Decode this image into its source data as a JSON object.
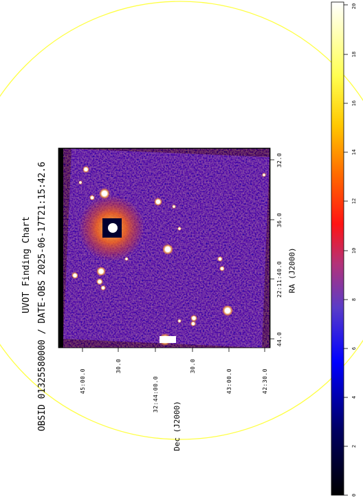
{
  "figure": {
    "title": "UVOT Finding Chart",
    "subtitle": "OBSID 01325580000 / DATE-OBS 2025-06-17T21:15:42.6",
    "ra_axis_label": "RA (J2000)",
    "dec_axis_label": "Dec (J2000)",
    "ra_ticks": [
      "44.0",
      "22:11:40.0",
      "36.0",
      "32.0"
    ],
    "dec_ticks": [
      "45:00.0",
      "30.0",
      "32:44:00.0",
      "30.0",
      "43:00.0",
      "42:30.0"
    ],
    "colorbar_ticks": [
      "0",
      "2",
      "4",
      "6",
      "8",
      "10",
      "12",
      "14",
      "16",
      "18",
      "20"
    ],
    "colors": {
      "circle": "#ffff44",
      "sky": "#1a1a8c",
      "edge": "#000000",
      "star": "#ffffff"
    }
  }
}
